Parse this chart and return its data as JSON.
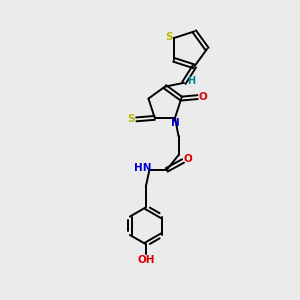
{
  "bg_color": "#ebebeb",
  "bond_color": "#000000",
  "S_color": "#b8b800",
  "N_color": "#0000cc",
  "O_color": "#dd0000",
  "H_color": "#008888",
  "figsize": [
    3.0,
    3.0
  ],
  "dpi": 100,
  "xlim": [
    0,
    10
  ],
  "ylim": [
    0,
    10
  ]
}
